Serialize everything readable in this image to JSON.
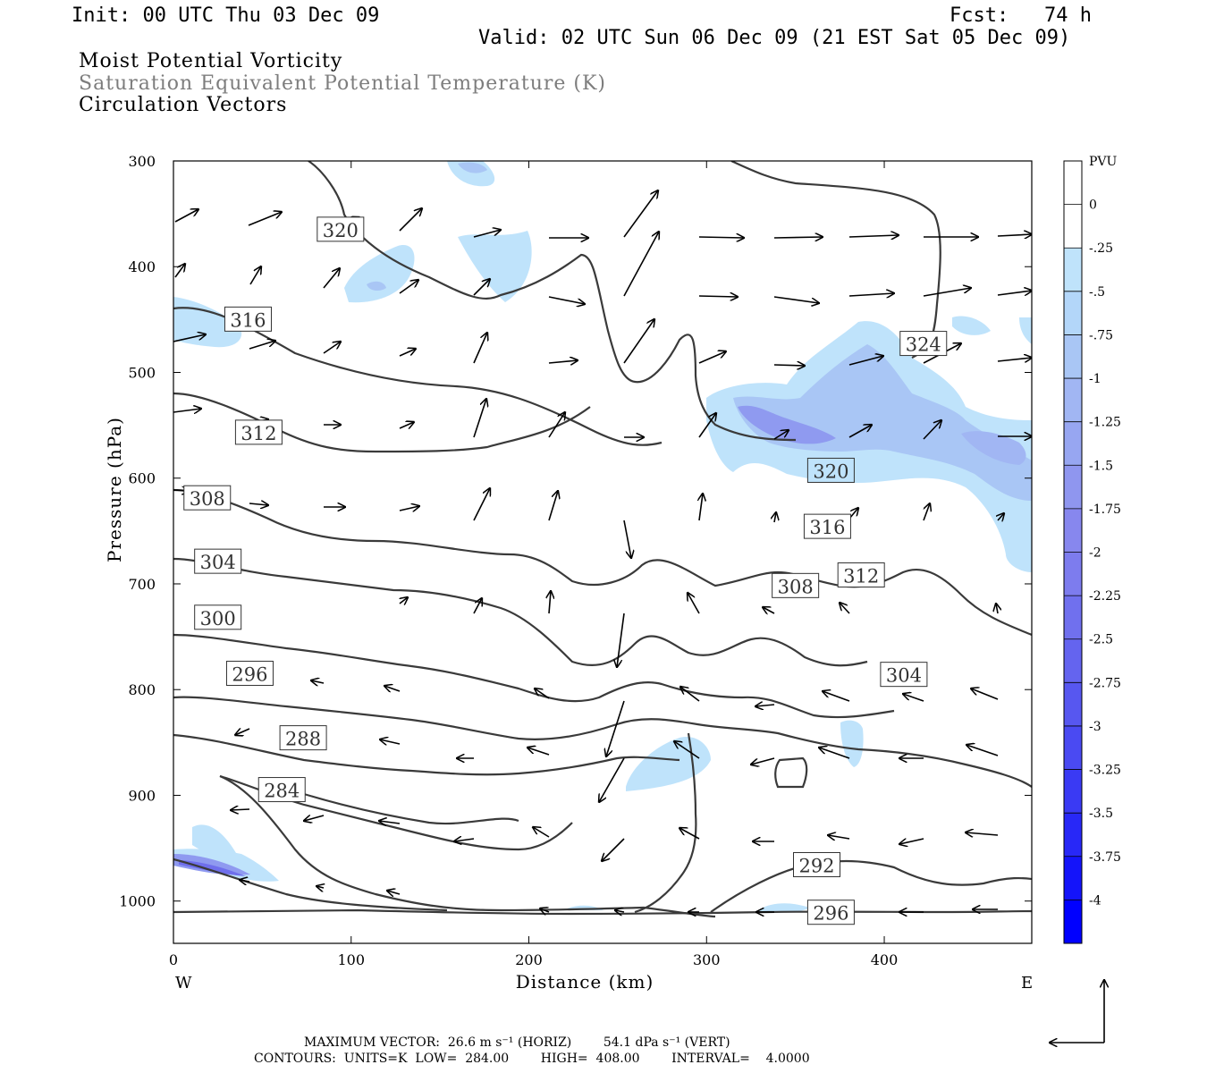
{
  "header": {
    "init": "Init: 00 UTC Thu 03 Dec 09",
    "fcst": "Fcst:   74 h",
    "valid": "Valid: 02 UTC Sun 06 Dec 09 (21 EST Sat 05 Dec 09)"
  },
  "fields": {
    "mpv": "Moist Potential Vorticity",
    "theta": "Saturation Equivalent Potential Temperature (K)",
    "vectors": "Circulation Vectors"
  },
  "footer": {
    "max_vector": "MAXIMUM VECTOR:  26.6 m s⁻¹ (HORIZ)        54.1 dPa s⁻¹ (VERT)",
    "contours": "CONTOURS:  UNITS=K  LOW=  284.00        HIGH=  408.00        INTERVAL=    4.0000"
  },
  "colors": {
    "contour": "#3a3a3a",
    "shade_light": "#bfe3fb",
    "shade_mid": "#a9c6f5",
    "shade_dark": "#8f9af0",
    "shade_deep": "#6f6fec"
  },
  "chart_data": {
    "type": "contour",
    "xlabel": "Distance (km)",
    "ylabel": "Pressure (hPa)",
    "xlim": [
      0,
      483
    ],
    "ylim": [
      1040,
      300
    ],
    "x_ticks": [
      0,
      100,
      200,
      300,
      400
    ],
    "y_ticks": [
      300,
      400,
      500,
      600,
      700,
      800,
      900,
      1000
    ],
    "x_end_labels": {
      "left": "W",
      "right": "E"
    },
    "colorbar": {
      "unit": "PVU",
      "levels": [
        "0",
        "-.25",
        "-.5",
        "-.75",
        "-1",
        "-1.25",
        "-1.5",
        "-1.75",
        "-2",
        "-2.25",
        "-2.5",
        "-2.75",
        "-3",
        "-3.25",
        "-3.5",
        "-3.75",
        "-4"
      ],
      "colors": [
        "#ffffff",
        "#ffffff",
        "#bfe3fb",
        "#b3d6f9",
        "#a9c6f5",
        "#a1b6f3",
        "#97a6f1",
        "#8f96ef",
        "#8787ee",
        "#7d7cee",
        "#7070ee",
        "#6464ef",
        "#5757f0",
        "#4a4af2",
        "#3a3af4",
        "#2828f7",
        "#1414fa",
        "#0000ff"
      ]
    },
    "contour_labels": [
      {
        "value": "320",
        "x": 94,
        "p": 365
      },
      {
        "value": "316",
        "x": 42,
        "p": 450
      },
      {
        "value": "324",
        "x": 422,
        "p": 473
      },
      {
        "value": "312",
        "x": 48,
        "p": 557
      },
      {
        "value": "320",
        "x": 370,
        "p": 593
      },
      {
        "value": "308",
        "x": 19,
        "p": 619
      },
      {
        "value": "316",
        "x": 368,
        "p": 646
      },
      {
        "value": "312",
        "x": 387,
        "p": 692
      },
      {
        "value": "304",
        "x": 25,
        "p": 679
      },
      {
        "value": "308",
        "x": 350,
        "p": 702
      },
      {
        "value": "300",
        "x": 25,
        "p": 732
      },
      {
        "value": "304",
        "x": 411,
        "p": 786
      },
      {
        "value": "296",
        "x": 43,
        "p": 785
      },
      {
        "value": "288",
        "x": 73,
        "p": 846
      },
      {
        "value": "284",
        "x": 61,
        "p": 895
      },
      {
        "value": "292",
        "x": 362,
        "p": 966
      },
      {
        "value": "296",
        "x": 370,
        "p": 1011
      }
    ]
  }
}
